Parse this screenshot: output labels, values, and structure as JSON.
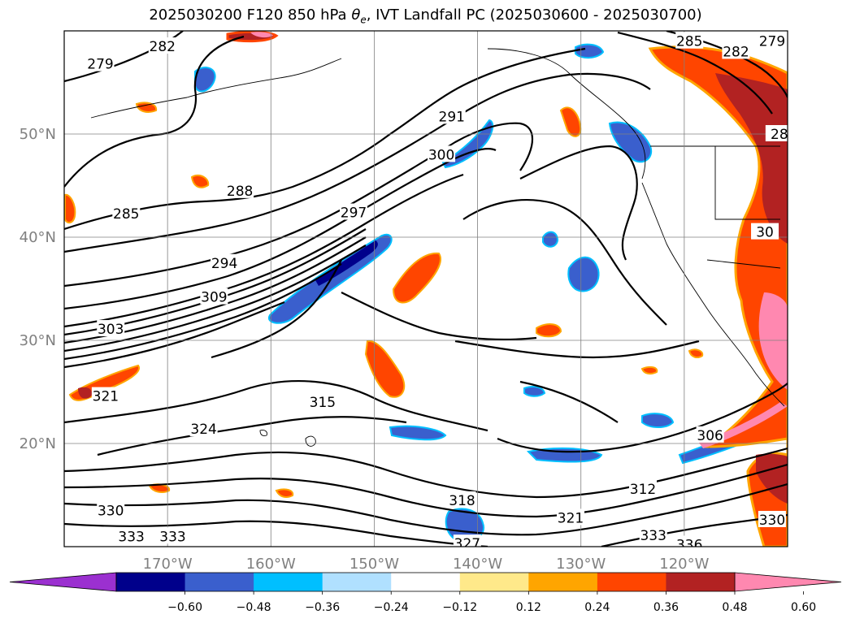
{
  "title": {
    "prefix": "2025030200 F120 850 hPa ",
    "theta": "θ",
    "sub": "e",
    "suffix": ", IVT Landfall PC (2025030600 - 2025030700)"
  },
  "chart_data": {
    "type": "heatmap",
    "projection": "map",
    "lon_range": [
      -180,
      -110
    ],
    "lat_range": [
      10,
      60
    ],
    "lat_ticks": [
      {
        "value": 20,
        "label": "20°N"
      },
      {
        "value": 30,
        "label": "30°N"
      },
      {
        "value": 40,
        "label": "40°N"
      },
      {
        "value": 50,
        "label": "50°N"
      }
    ],
    "lon_ticks": [
      {
        "value": -170,
        "label": "170°W"
      },
      {
        "value": -160,
        "label": "160°W"
      },
      {
        "value": -150,
        "label": "150°W"
      },
      {
        "value": -140,
        "label": "140°W"
      },
      {
        "value": -130,
        "label": "130°W"
      },
      {
        "value": -120,
        "label": "120°W"
      }
    ],
    "grid": true,
    "colorbar": {
      "levels": [
        -0.72,
        -0.6,
        -0.48,
        -0.36,
        -0.24,
        -0.12,
        0.12,
        0.24,
        0.36,
        0.48,
        0.6,
        0.72
      ],
      "tick_labels": [
        "−0.60",
        "−0.48",
        "−0.36",
        "−0.24",
        "−0.12",
        "0.12",
        "0.24",
        "0.36",
        "0.48",
        "0.60"
      ],
      "colors": [
        "#9b30d0",
        "#00008b",
        "#3a5fcd",
        "#00bfff",
        "#b0e0ff",
        "#ffffff",
        "#ffe98a",
        "#ffa500",
        "#ff4500",
        "#b22222",
        "#ff88b0"
      ],
      "extend": "both",
      "extend_under_color": "#9b30d0",
      "extend_over_color": "#ff88b0"
    },
    "contour_labels": [
      {
        "text": "279",
        "lon": -176.5,
        "lat": 56.8
      },
      {
        "text": "282",
        "lon": -170.5,
        "lat": 58.5
      },
      {
        "text": "285",
        "lon": -174.0,
        "lat": 42.3
      },
      {
        "text": "288",
        "lon": -163.0,
        "lat": 44.5
      },
      {
        "text": "291",
        "lon": -142.5,
        "lat": 51.7
      },
      {
        "text": "294",
        "lon": -164.5,
        "lat": 37.5
      },
      {
        "text": "297",
        "lon": -152.0,
        "lat": 42.4
      },
      {
        "text": "300",
        "lon": -143.5,
        "lat": 48.0
      },
      {
        "text": "303",
        "lon": -175.5,
        "lat": 31.1
      },
      {
        "text": "309",
        "lon": -165.5,
        "lat": 34.2
      },
      {
        "text": "315",
        "lon": -155.0,
        "lat": 24.0
      },
      {
        "text": "318",
        "lon": -141.5,
        "lat": 14.5
      },
      {
        "text": "321",
        "lon": -176.0,
        "lat": 24.6
      },
      {
        "text": "324",
        "lon": -166.5,
        "lat": 21.4
      },
      {
        "text": "306",
        "lon": -117.5,
        "lat": 20.8
      },
      {
        "text": "312",
        "lon": -124.0,
        "lat": 15.6
      },
      {
        "text": "321",
        "lon": -131.0,
        "lat": 12.8
      },
      {
        "text": "327",
        "lon": -141.0,
        "lat": 10.3
      },
      {
        "text": "330",
        "lon": -175.5,
        "lat": 13.5
      },
      {
        "text": "330",
        "lon": -111.5,
        "lat": 12.6
      },
      {
        "text": "333",
        "lon": -173.5,
        "lat": 11.0
      },
      {
        "text": "333",
        "lon": -169.5,
        "lat": 11.0
      },
      {
        "text": "333",
        "lon": -123.0,
        "lat": 11.1
      },
      {
        "text": "336",
        "lon": -119.5,
        "lat": 10.2
      },
      {
        "text": "285",
        "lon": -119.5,
        "lat": 59.0
      },
      {
        "text": "282",
        "lon": -115.0,
        "lat": 58.0
      },
      {
        "text": "279",
        "lon": -111.5,
        "lat": 59.0
      },
      {
        "text": "28",
        "lon": -110.8,
        "lat": 50.0
      },
      {
        "text": "30",
        "lon": -112.2,
        "lat": 40.5
      }
    ]
  }
}
